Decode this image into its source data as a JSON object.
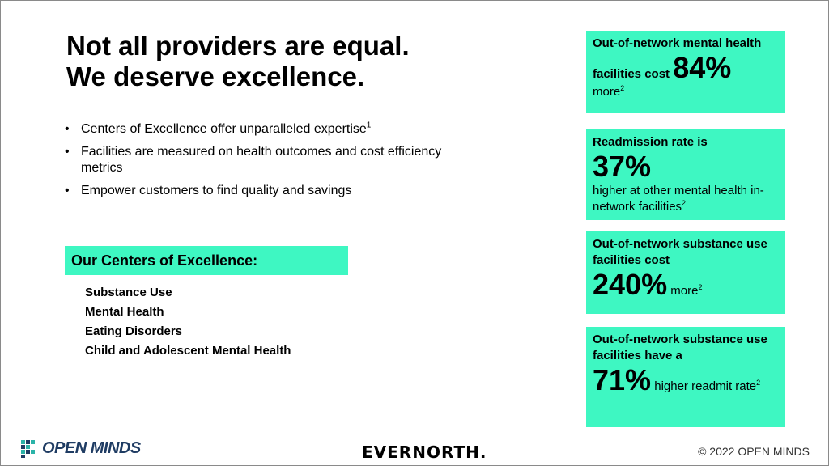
{
  "title": {
    "line1": "Not all providers are equal.",
    "line2": "We deserve excellence."
  },
  "bullets": [
    {
      "text": "Centers of Excellence offer unparalleled expertise",
      "sup": "1"
    },
    {
      "text": "Facilities are measured on health outcomes and cost efficiency metrics",
      "sup": ""
    },
    {
      "text": "Empower customers to find quality and savings",
      "sup": ""
    }
  ],
  "coe": {
    "header": "Our Centers of Excellence:",
    "items": [
      "Substance Use",
      "Mental Health",
      "Eating Disorders",
      "Child and Adolescent Mental Health"
    ]
  },
  "cards": {
    "c1": {
      "bold": "Out-of-network mental health facilities cost",
      "big": "84%",
      "after": "more",
      "sup": "2"
    },
    "c2": {
      "bold": "Readmission rate is",
      "big": "37%",
      "after": "higher at other mental health in-network facilities",
      "sup": "2"
    },
    "c3": {
      "bold": "Out-of-network substance use facilities cost",
      "big": "240%",
      "after": "more",
      "sup": "2"
    },
    "c4": {
      "bold": "Out-of-network substance use facilities have a",
      "big": "71%",
      "after": "higher readmit rate",
      "sup": "2"
    }
  },
  "footer": {
    "logo_text": "OPEN MINDS",
    "partner": "EVERNORTH.",
    "copyright": "© 2022 OPEN MINDS"
  },
  "colors": {
    "accent": "#3ef7c2",
    "logo_blue": "#1f3c63",
    "logo_teal": "#2bb3a8"
  }
}
